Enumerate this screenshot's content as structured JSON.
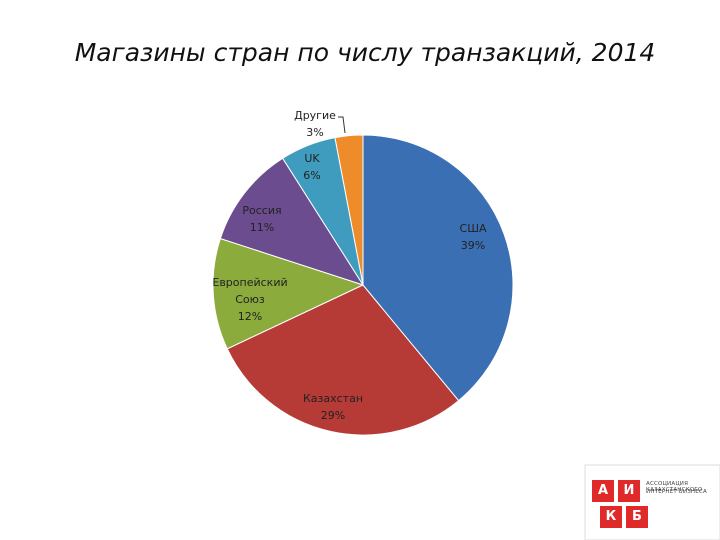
{
  "chart_data": {
    "type": "pie",
    "title": "Магазины стран по числу транзакций, 2014",
    "categories": [
      "США",
      "Казахстан",
      "Европейский Союз",
      "Россия",
      "UK",
      "Другие"
    ],
    "values": [
      39,
      29,
      12,
      11,
      6,
      3
    ],
    "value_labels": [
      "39%",
      "29%",
      "12%",
      "11%",
      "6%",
      "3%"
    ],
    "colors": [
      "#3b6fb4",
      "#b63b37",
      "#8bab3d",
      "#6a4c8f",
      "#3f9cbf",
      "#ee8b2b"
    ]
  },
  "logo": {
    "letters": [
      "А",
      "И",
      "К",
      "Б"
    ],
    "text": [
      "АССОЦИАЦИЯ КАЗАХСТАНСКОГО",
      "ИНТЕРНЕТ БИЗНЕСА"
    ]
  }
}
